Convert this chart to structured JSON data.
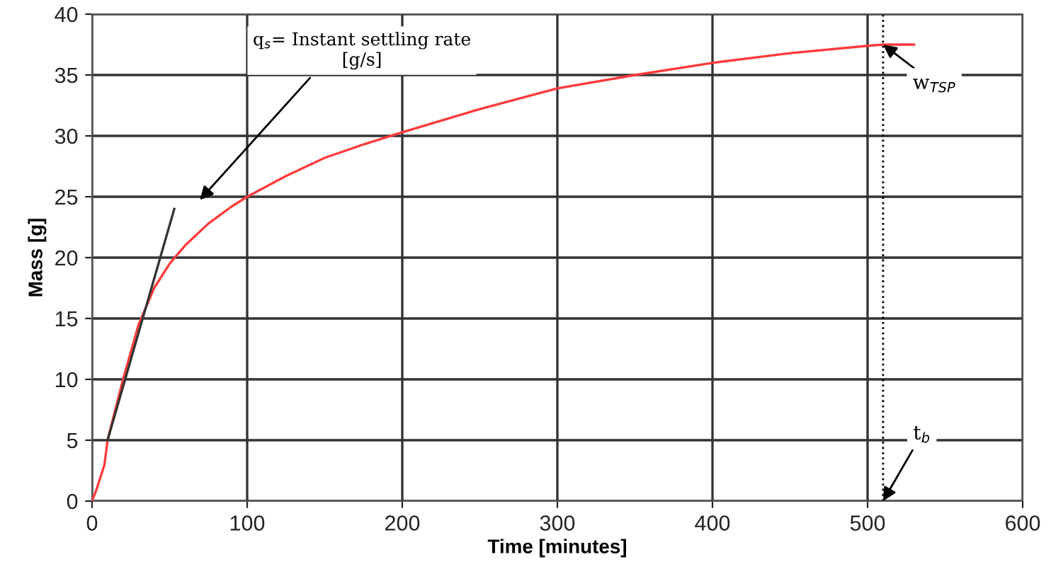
{
  "chart_data": {
    "type": "line",
    "xlabel": "Time [minutes]",
    "ylabel": "Mass [g]",
    "xlim": [
      0,
      600
    ],
    "ylim": [
      0,
      40
    ],
    "xticks": [
      0,
      100,
      200,
      300,
      400,
      500,
      600
    ],
    "yticks": [
      0,
      5,
      10,
      15,
      20,
      25,
      30,
      35,
      40
    ],
    "grid": true,
    "marker": "none",
    "line_style": "solid",
    "series": [
      {
        "color": "#ff3b3b",
        "x": [
          0,
          3,
          8,
          10,
          15,
          20,
          30,
          40,
          50,
          60,
          75,
          90,
          100,
          125,
          150,
          175,
          200,
          250,
          300,
          350,
          400,
          450,
          500,
          510,
          530
        ],
        "values": [
          0,
          1,
          3,
          5,
          7.5,
          10,
          14.5,
          17.5,
          19.5,
          21,
          22.8,
          24.2,
          25,
          26.7,
          28.2,
          29.3,
          30.3,
          32.2,
          33.9,
          35,
          36,
          36.8,
          37.4,
          37.5,
          37.5
        ]
      },
      {
        "color": "#333333",
        "x": [
          10,
          53
        ],
        "values": [
          5,
          24
        ]
      }
    ],
    "ref_lines": [
      {
        "axis": "x",
        "value": 510,
        "color": "#000000",
        "line_style": "dotted"
      }
    ],
    "annotations": [
      "q$_{s}$= Instant settling rate\n[g/s]",
      {
        "text": "w$_{TSP}$",
        "x": 510,
        "y": 37.5
      },
      {
        "text": "t$_{b}$",
        "x": 510,
        "y": 0
      }
    ]
  }
}
